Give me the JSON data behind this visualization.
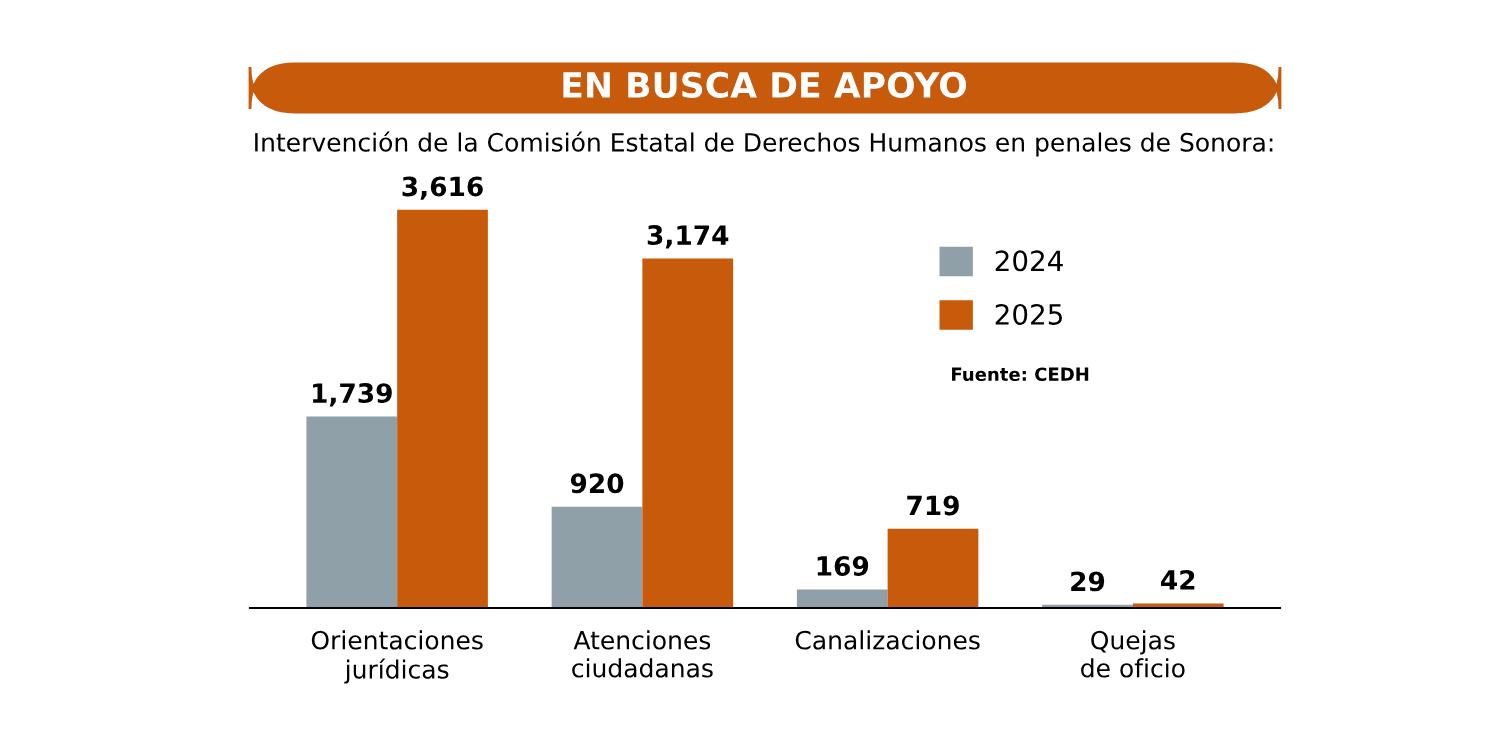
{
  "chart_data": {
    "type": "bar",
    "title": "EN BUSCA DE APOYO",
    "subtitle": "Intervención de la Comisión Estatal de Derechos Humanos en penales de Sonora:",
    "categories": [
      "Orientaciones\njurídicas",
      "Atenciones\nciudadanas",
      "Canalizaciones",
      "Quejas\nde oficio"
    ],
    "series": [
      {
        "name": "2024",
        "color": "#8fa0a8",
        "values": [
          1739,
          920,
          169,
          29
        ],
        "value_labels": [
          "1,739",
          "920",
          "169",
          "29"
        ]
      },
      {
        "name": "2025",
        "color": "#c85a0c",
        "values": [
          3616,
          3174,
          719,
          42
        ],
        "value_labels": [
          "3,616",
          "3,174",
          "719",
          "42"
        ]
      }
    ],
    "annotations": [
      "Fuente: CEDH"
    ],
    "legend": "top right",
    "grid": false
  }
}
